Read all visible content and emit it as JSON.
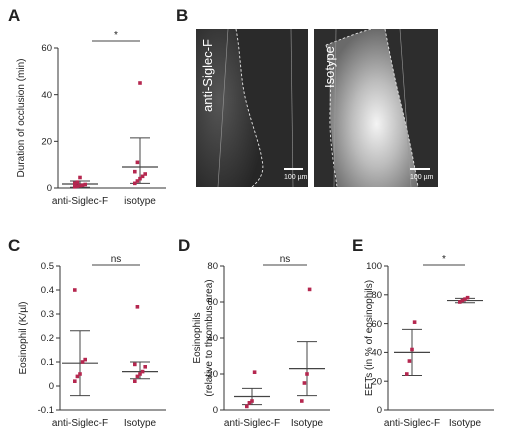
{
  "panels": {
    "A": {
      "letter": "A"
    },
    "B": {
      "letter": "B",
      "left_image_label": "anti-Siglec-F",
      "right_image_label": "Isotype",
      "scale_bar_left": "100 µm",
      "scale_bar_right": "100 µm"
    },
    "C": {
      "letter": "C"
    },
    "D": {
      "letter": "D"
    },
    "E": {
      "letter": "E"
    }
  },
  "colors": {
    "points": "#b5274f",
    "axis": "#333333",
    "lines": "#444444"
  },
  "chart_data": [
    {
      "panel": "A",
      "type": "scatter",
      "title": "",
      "ylabel": "Duration of occlusion (min)",
      "ylim": [
        0,
        60
      ],
      "yticks": [
        0,
        20,
        40,
        60
      ],
      "categories": [
        "anti-Siglec-F",
        "isotype"
      ],
      "series": [
        {
          "category": "anti-Siglec-F",
          "values": [
            0.5,
            0.8,
            1.0,
            1.2,
            1.5,
            2.0,
            2.5,
            4.5
          ],
          "mean": 1.7,
          "err_low": 0.3,
          "err_high": 3.0
        },
        {
          "category": "isotype",
          "values": [
            2.0,
            3.0,
            4.0,
            5.0,
            6.0,
            7.0,
            11.0,
            45.0
          ],
          "mean": 9.0,
          "err_low": 2.0,
          "err_high": 21.5
        }
      ],
      "significance": "*"
    },
    {
      "panel": "C",
      "type": "scatter",
      "title": "",
      "ylabel": "Eosinophil (K/µl)",
      "ylim": [
        -0.1,
        0.5
      ],
      "yticks": [
        -0.1,
        0,
        0.1,
        0.2,
        0.3,
        0.4,
        0.5
      ],
      "categories": [
        "anti-Siglec-F",
        "Isotype"
      ],
      "series": [
        {
          "category": "anti-Siglec-F",
          "values": [
            0.02,
            0.04,
            0.05,
            0.1,
            0.11,
            0.4
          ],
          "mean": 0.095,
          "err_low": -0.04,
          "err_high": 0.23
        },
        {
          "category": "Isotype",
          "values": [
            0.02,
            0.04,
            0.05,
            0.06,
            0.08,
            0.09,
            0.33
          ],
          "mean": 0.06,
          "err_low": 0.03,
          "err_high": 0.1
        }
      ],
      "significance": "ns"
    },
    {
      "panel": "D",
      "type": "scatter",
      "title": "",
      "ylabel": "Eosinophils",
      "ylabel2": "(relative to thrombus area)",
      "ylim": [
        0,
        80
      ],
      "yticks": [
        0,
        20,
        40,
        60,
        80
      ],
      "categories": [
        "anti-Siglec-F",
        "Isotype"
      ],
      "series": [
        {
          "category": "anti-Siglec-F",
          "values": [
            2.0,
            4.0,
            5.0,
            21.0
          ],
          "mean": 7.5,
          "err_low": 3.0,
          "err_high": 12.0
        },
        {
          "category": "Isotype",
          "values": [
            5.0,
            15.0,
            20.0,
            67.0
          ],
          "mean": 23.0,
          "err_low": 8.0,
          "err_high": 38.0
        }
      ],
      "significance": "ns"
    },
    {
      "panel": "E",
      "type": "scatter",
      "title": "",
      "ylabel": "EETs (in % of eosinophils)",
      "ylim": [
        0,
        100
      ],
      "yticks": [
        0,
        20,
        40,
        60,
        80,
        100
      ],
      "categories": [
        "anti-Siglec-F",
        "Isotype"
      ],
      "series": [
        {
          "category": "anti-Siglec-F",
          "values": [
            25.0,
            34.0,
            42.0,
            61.0
          ],
          "mean": 40.0,
          "err_low": 24.0,
          "err_high": 56.0
        },
        {
          "category": "Isotype",
          "values": [
            75.0,
            76.0,
            77.0,
            78.0
          ],
          "mean": 76.0,
          "err_low": 74.5,
          "err_high": 77.5
        }
      ],
      "significance": "*"
    }
  ]
}
